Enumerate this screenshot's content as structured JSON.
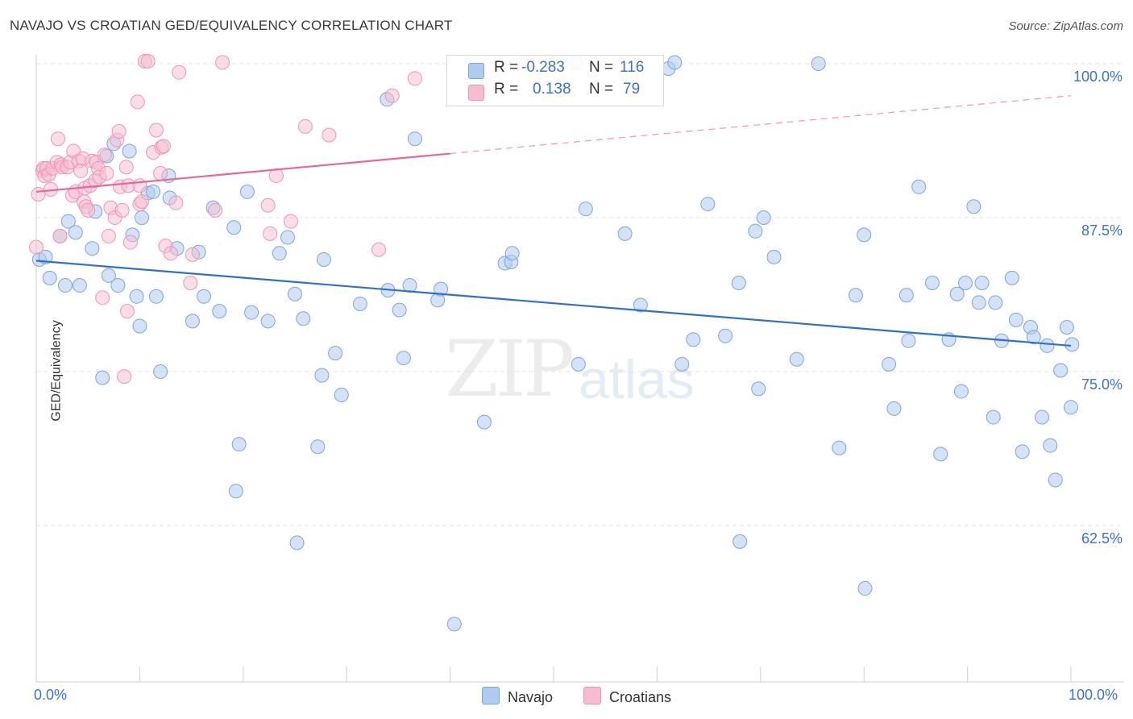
{
  "header": {
    "title": "NAVAJO VS CROATIAN GED/EQUIVALENCY CORRELATION CHART",
    "source": "Source: ZipAtlas.com"
  },
  "watermark": {
    "zip": "ZIP",
    "atlas": "atlas"
  },
  "legend": {
    "navajo": {
      "r_label": "R =",
      "r_value": "-0.283",
      "n_label": "N =",
      "n_value": "116"
    },
    "croatian": {
      "r_label": "R =",
      "r_value": "0.138",
      "n_label": "N =",
      "n_value": "79"
    }
  },
  "bottom_legend": {
    "navajo": "Navajo",
    "croatians": "Croatians"
  },
  "colors": {
    "navajo_fill": "#aecbf0",
    "navajo_stroke": "#7aa6dc",
    "navajo_line": "#2f6fcf",
    "croatian_fill": "#f7bcd0",
    "croatian_stroke": "#ee94b3",
    "croatian_line": "#e8669a",
    "tick_label": "#3a73c9",
    "grid": "#e3e3e3"
  },
  "chart_data": {
    "type": "scatter",
    "title": "NAVAJO VS CROATIAN GED/EQUIVALENCY CORRELATION CHART",
    "xlabel": "",
    "ylabel": "GED/Equivalency",
    "xlim": [
      0,
      100
    ],
    "ylim": [
      50.5,
      101
    ],
    "x_tick_labels": [
      "0.0%",
      "100.0%"
    ],
    "y_ticks": [
      62.5,
      75.0,
      87.5,
      100.0
    ],
    "y_tick_labels": [
      "62.5%",
      "75.0%",
      "87.5%",
      "100.0%"
    ],
    "grid": true,
    "legend_placement": "top-center",
    "series": [
      {
        "name": "Navajo",
        "r": -0.283,
        "n": 116,
        "trend": {
          "x": [
            0,
            100
          ],
          "y": [
            84.0,
            77.1
          ]
        },
        "points": [
          [
            0.3,
            84.1
          ],
          [
            0.9,
            84.3
          ],
          [
            1.3,
            82.6
          ],
          [
            2.3,
            86.0
          ],
          [
            2.8,
            82.0
          ],
          [
            3.1,
            87.2
          ],
          [
            3.8,
            86.3
          ],
          [
            4.2,
            82.0
          ],
          [
            5.4,
            85.0
          ],
          [
            5.7,
            88.0
          ],
          [
            6.4,
            74.5
          ],
          [
            6.8,
            92.5
          ],
          [
            7.0,
            82.8
          ],
          [
            7.5,
            93.5
          ],
          [
            7.9,
            82.0
          ],
          [
            9.0,
            92.9
          ],
          [
            9.3,
            86.1
          ],
          [
            9.7,
            81.1
          ],
          [
            10.0,
            78.7
          ],
          [
            10.2,
            87.5
          ],
          [
            10.8,
            89.5
          ],
          [
            11.3,
            89.6
          ],
          [
            11.6,
            81.1
          ],
          [
            12.0,
            75.0
          ],
          [
            12.8,
            90.9
          ],
          [
            12.9,
            89.1
          ],
          [
            13.6,
            85.0
          ],
          [
            15.1,
            79.1
          ],
          [
            15.7,
            84.7
          ],
          [
            16.2,
            81.1
          ],
          [
            17.1,
            88.3
          ],
          [
            17.7,
            79.9
          ],
          [
            19.1,
            86.7
          ],
          [
            19.3,
            65.3
          ],
          [
            19.6,
            69.1
          ],
          [
            20.4,
            89.6
          ],
          [
            20.8,
            79.8
          ],
          [
            22.4,
            79.1
          ],
          [
            23.5,
            84.6
          ],
          [
            24.3,
            85.9
          ],
          [
            25.0,
            81.3
          ],
          [
            25.2,
            61.1
          ],
          [
            25.8,
            79.3
          ],
          [
            27.2,
            68.9
          ],
          [
            27.6,
            74.7
          ],
          [
            27.8,
            84.1
          ],
          [
            28.9,
            76.5
          ],
          [
            29.5,
            73.1
          ],
          [
            31.3,
            80.5
          ],
          [
            33.9,
            97.1
          ],
          [
            34.0,
            81.6
          ],
          [
            35.1,
            80.0
          ],
          [
            35.5,
            76.1
          ],
          [
            36.1,
            82.0
          ],
          [
            36.6,
            93.9
          ],
          [
            38.8,
            80.8
          ],
          [
            39.1,
            81.7
          ],
          [
            40.4,
            54.5
          ],
          [
            43.3,
            70.9
          ],
          [
            45.3,
            83.8
          ],
          [
            45.9,
            83.9
          ],
          [
            46.0,
            84.6
          ],
          [
            52.2,
            100.1
          ],
          [
            52.4,
            75.6
          ],
          [
            53.1,
            88.2
          ],
          [
            56.9,
            86.2
          ],
          [
            58.4,
            80.4
          ],
          [
            61.1,
            99.6
          ],
          [
            61.7,
            100.1
          ],
          [
            62.4,
            75.6
          ],
          [
            63.5,
            77.6
          ],
          [
            64.9,
            88.6
          ],
          [
            66.6,
            77.9
          ],
          [
            67.9,
            82.2
          ],
          [
            68.0,
            61.2
          ],
          [
            69.5,
            86.4
          ],
          [
            69.8,
            73.6
          ],
          [
            70.3,
            87.5
          ],
          [
            71.3,
            84.3
          ],
          [
            73.5,
            76.0
          ],
          [
            75.6,
            100.0
          ],
          [
            77.6,
            68.8
          ],
          [
            79.2,
            81.2
          ],
          [
            80.0,
            86.1
          ],
          [
            80.1,
            57.4
          ],
          [
            82.4,
            75.6
          ],
          [
            82.9,
            72.0
          ],
          [
            84.1,
            81.2
          ],
          [
            84.3,
            77.5
          ],
          [
            85.3,
            90.0
          ],
          [
            86.6,
            82.2
          ],
          [
            87.4,
            68.3
          ],
          [
            88.2,
            77.6
          ],
          [
            89.0,
            81.3
          ],
          [
            89.4,
            73.4
          ],
          [
            89.8,
            82.2
          ],
          [
            90.6,
            88.4
          ],
          [
            91.1,
            80.6
          ],
          [
            91.4,
            82.2
          ],
          [
            92.5,
            71.3
          ],
          [
            92.7,
            80.6
          ],
          [
            93.3,
            77.5
          ],
          [
            94.3,
            82.6
          ],
          [
            94.7,
            79.2
          ],
          [
            95.3,
            68.5
          ],
          [
            96.1,
            78.6
          ],
          [
            96.4,
            77.8
          ],
          [
            97.2,
            71.3
          ],
          [
            97.7,
            77.1
          ],
          [
            98.0,
            69.0
          ],
          [
            98.5,
            66.2
          ],
          [
            99.0,
            75.1
          ],
          [
            99.6,
            78.6
          ],
          [
            100.0,
            72.1
          ],
          [
            100.1,
            77.2
          ]
        ]
      },
      {
        "name": "Croatians",
        "r": 0.138,
        "n": 79,
        "trend": {
          "x": [
            0,
            40
          ],
          "y": [
            89.6,
            92.7
          ],
          "dashed_to": {
            "x": 100,
            "y": 97.4
          }
        },
        "points": [
          [
            0.0,
            85.1
          ],
          [
            0.2,
            89.4
          ],
          [
            0.6,
            91.3
          ],
          [
            0.7,
            91.5
          ],
          [
            0.8,
            90.9
          ],
          [
            1.0,
            91.5
          ],
          [
            1.2,
            91.0
          ],
          [
            1.4,
            89.8
          ],
          [
            1.6,
            91.5
          ],
          [
            2.0,
            92.0
          ],
          [
            2.1,
            93.9
          ],
          [
            2.3,
            86.0
          ],
          [
            2.4,
            91.8
          ],
          [
            2.5,
            91.6
          ],
          [
            3.0,
            91.6
          ],
          [
            3.3,
            92.0
          ],
          [
            3.5,
            89.3
          ],
          [
            3.6,
            92.9
          ],
          [
            3.8,
            89.6
          ],
          [
            4.1,
            92.1
          ],
          [
            4.3,
            91.3
          ],
          [
            4.5,
            92.3
          ],
          [
            4.6,
            88.8
          ],
          [
            4.7,
            89.9
          ],
          [
            4.8,
            88.4
          ],
          [
            5.0,
            88.1
          ],
          [
            5.2,
            90.1
          ],
          [
            5.4,
            92.1
          ],
          [
            5.7,
            90.5
          ],
          [
            5.8,
            92.0
          ],
          [
            6.0,
            91.5
          ],
          [
            6.1,
            90.8
          ],
          [
            6.4,
            81.0
          ],
          [
            6.6,
            92.6
          ],
          [
            6.8,
            91.1
          ],
          [
            7.0,
            86.0
          ],
          [
            7.2,
            88.3
          ],
          [
            7.6,
            87.5
          ],
          [
            7.8,
            93.8
          ],
          [
            8.0,
            94.5
          ],
          [
            8.1,
            90.0
          ],
          [
            8.3,
            88.1
          ],
          [
            8.5,
            74.6
          ],
          [
            8.7,
            91.6
          ],
          [
            8.8,
            79.9
          ],
          [
            8.9,
            90.1
          ],
          [
            9.1,
            85.5
          ],
          [
            9.8,
            96.9
          ],
          [
            10.0,
            88.6
          ],
          [
            10.0,
            90.1
          ],
          [
            10.2,
            88.8
          ],
          [
            10.5,
            100.2
          ],
          [
            10.8,
            100.2
          ],
          [
            11.3,
            92.8
          ],
          [
            11.6,
            94.6
          ],
          [
            12.0,
            91.1
          ],
          [
            12.1,
            93.2
          ],
          [
            12.3,
            93.3
          ],
          [
            12.5,
            85.2
          ],
          [
            13.0,
            84.6
          ],
          [
            13.5,
            88.7
          ],
          [
            13.8,
            99.3
          ],
          [
            14.9,
            82.2
          ],
          [
            15.1,
            84.5
          ],
          [
            17.3,
            88.1
          ],
          [
            18.0,
            100.1
          ],
          [
            22.4,
            88.5
          ],
          [
            22.6,
            86.2
          ],
          [
            23.2,
            90.9
          ],
          [
            24.6,
            87.2
          ],
          [
            26.0,
            94.9
          ],
          [
            28.3,
            94.2
          ],
          [
            33.1,
            84.9
          ],
          [
            34.4,
            97.4
          ],
          [
            36.6,
            98.8
          ]
        ]
      }
    ]
  }
}
